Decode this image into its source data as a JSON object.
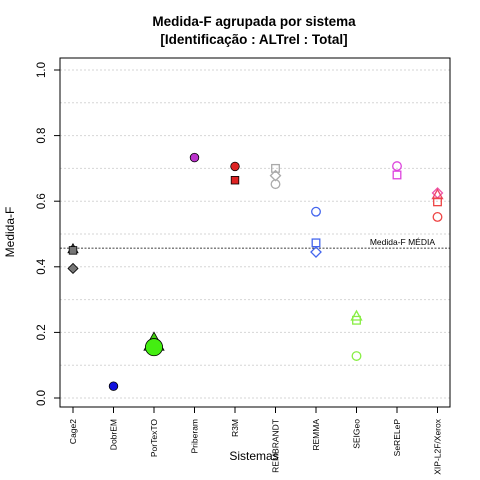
{
  "chart_data": {
    "type": "scatter",
    "title": "Medida-F agrupada por sistema",
    "subtitle": "[Identificação : ALTrel : Total]",
    "xlabel": "Sistemas",
    "ylabel": "Medida-F",
    "ylim": [
      0,
      1
    ],
    "yticks": [
      "0.0",
      "0.2",
      "0.4",
      "0.6",
      "0.8",
      "1.0"
    ],
    "grid": "horizontal dashed",
    "categories": [
      "Cage2",
      "DobrEM",
      "PorTexTO",
      "Priberam",
      "R3M",
      "REMBRANDT",
      "REMMA",
      "SEIGeo",
      "SeRELeP",
      "XIP-L2F/Xerox"
    ],
    "reference_line": {
      "label": "Medida-F MÉDIA",
      "value": 0.457
    },
    "points": [
      {
        "system": "Cage2",
        "shape": "triangle",
        "value": 0.455,
        "color": "#555555",
        "filled": true
      },
      {
        "system": "Cage2",
        "shape": "square",
        "value": 0.45,
        "color": "#777777",
        "filled": true
      },
      {
        "system": "Cage2",
        "shape": "diamond",
        "value": 0.395,
        "color": "#777777",
        "filled": true
      },
      {
        "system": "DobrEM",
        "shape": "circle",
        "value": 0.036,
        "color": "#1111dd",
        "filled": true
      },
      {
        "system": "PorTexTO",
        "shape": "triangle",
        "value": 0.17,
        "color": "#44cc11",
        "filled": true,
        "big": true
      },
      {
        "system": "PorTexTO",
        "shape": "circle",
        "value": 0.155,
        "color": "#44ee11",
        "filled": true,
        "big": true
      },
      {
        "system": "Priberam",
        "shape": "circle",
        "value": 0.733,
        "color": "#bb33cc",
        "filled": true
      },
      {
        "system": "R3M",
        "shape": "circle",
        "value": 0.706,
        "color": "#dd2222",
        "filled": true
      },
      {
        "system": "R3M",
        "shape": "square",
        "value": 0.664,
        "color": "#dd2222",
        "filled": true
      },
      {
        "system": "REMBRANDT",
        "shape": "square",
        "value": 0.7,
        "color": "#aaaaaa",
        "filled": false
      },
      {
        "system": "REMBRANDT",
        "shape": "diamond",
        "value": 0.678,
        "color": "#aaaaaa",
        "filled": false
      },
      {
        "system": "REMBRANDT",
        "shape": "circle",
        "value": 0.652,
        "color": "#aaaaaa",
        "filled": false
      },
      {
        "system": "REMMA",
        "shape": "circle",
        "value": 0.568,
        "color": "#4466ee",
        "filled": false
      },
      {
        "system": "REMMA",
        "shape": "square",
        "value": 0.473,
        "color": "#4466ee",
        "filled": false
      },
      {
        "system": "REMMA",
        "shape": "diamond",
        "value": 0.445,
        "color": "#4466ee",
        "filled": false
      },
      {
        "system": "SEIGeo",
        "shape": "triangle",
        "value": 0.25,
        "color": "#88ee44",
        "filled": false
      },
      {
        "system": "SEIGeo",
        "shape": "square",
        "value": 0.237,
        "color": "#88ee44",
        "filled": false
      },
      {
        "system": "SEIGeo",
        "shape": "circle",
        "value": 0.128,
        "color": "#88ee44",
        "filled": false
      },
      {
        "system": "SeRELeP",
        "shape": "circle",
        "value": 0.707,
        "color": "#dd44dd",
        "filled": false
      },
      {
        "system": "SeRELeP",
        "shape": "square",
        "value": 0.68,
        "color": "#dd44dd",
        "filled": false
      },
      {
        "system": "XIP-L2F/Xerox",
        "shape": "diamond",
        "value": 0.625,
        "color": "#ee55aa",
        "filled": false
      },
      {
        "system": "XIP-L2F/Xerox",
        "shape": "triangle",
        "value": 0.62,
        "color": "#ee4466",
        "filled": false
      },
      {
        "system": "XIP-L2F/Xerox",
        "shape": "square",
        "value": 0.598,
        "color": "#ee4444",
        "filled": false
      },
      {
        "system": "XIP-L2F/Xerox",
        "shape": "circle",
        "value": 0.552,
        "color": "#ee4444",
        "filled": false
      }
    ]
  }
}
